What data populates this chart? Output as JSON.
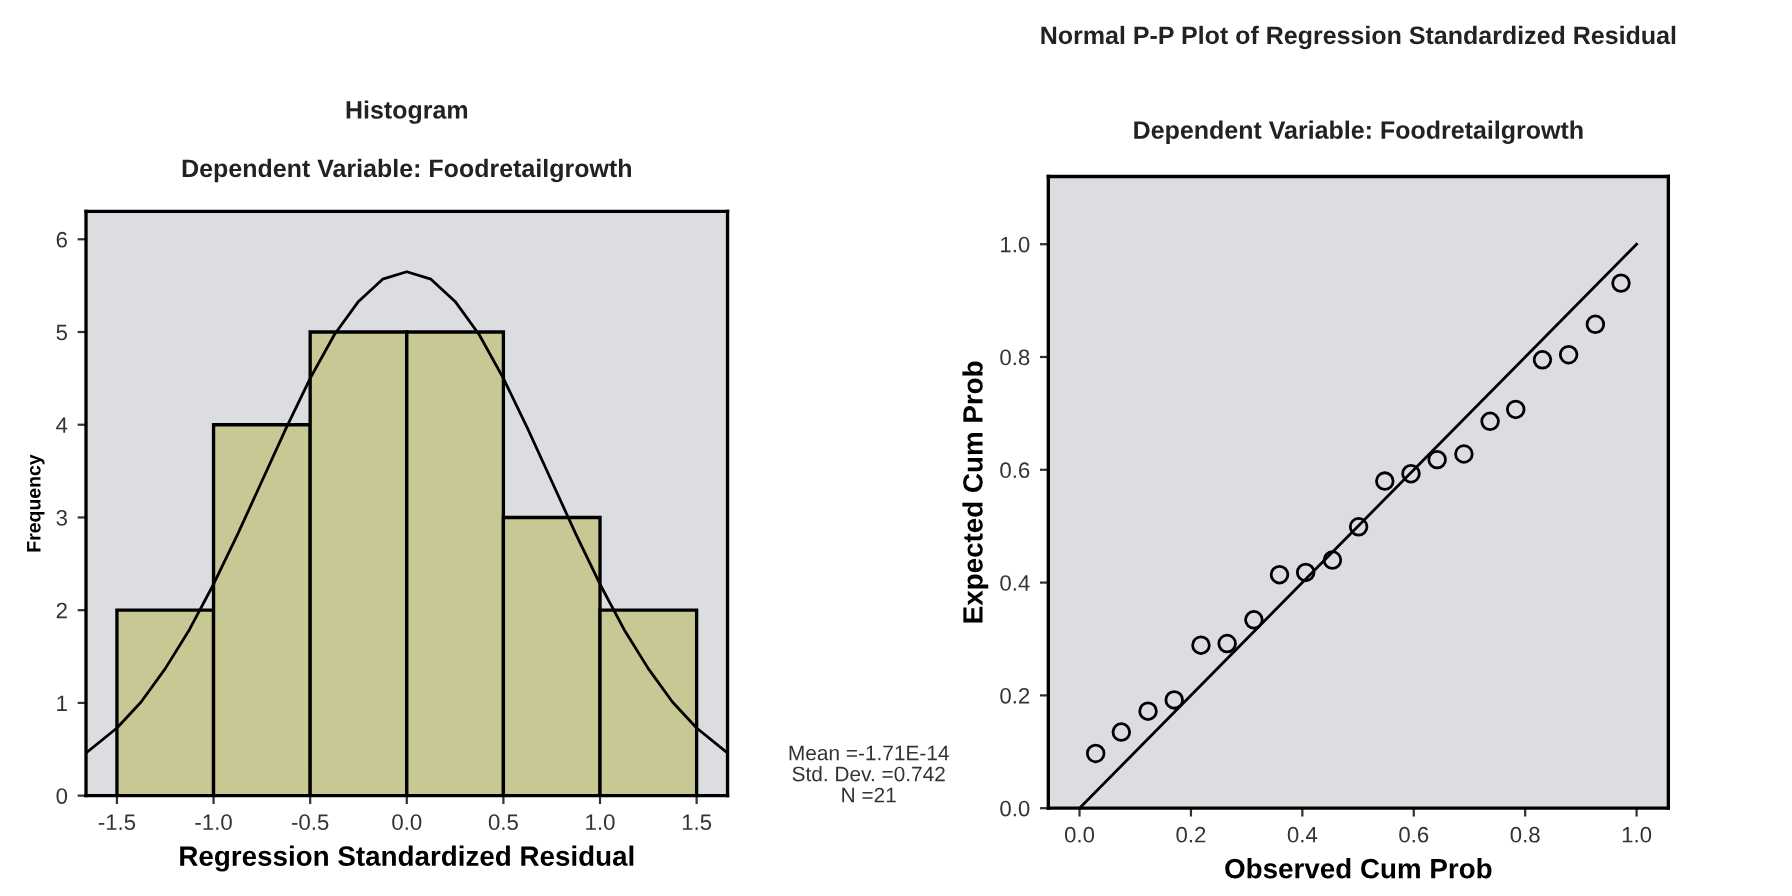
{
  "chart_data": [
    {
      "type": "histogram",
      "title": "Histogram",
      "subtitle": "Dependent Variable: Foodretailgrowth",
      "xlabel": "Regression Standardized Residual",
      "ylabel": "Frequency",
      "series": [
        {
          "bins": [
            -1.5,
            -1.0,
            -0.5,
            0.0,
            0.5,
            1.0,
            1.5
          ],
          "values": [
            2,
            4,
            5,
            5,
            3,
            2
          ],
          "color": "#c8c894"
        },
        {
          "type": "line",
          "color": "#000000",
          "x": [
            -1.66,
            -1.5,
            -1.375,
            -1.25,
            -1.125,
            -1.0,
            -0.875,
            -0.75,
            -0.625,
            -0.5,
            -0.375,
            -0.25,
            -0.125,
            0.0,
            0.125,
            0.25,
            0.375,
            0.5,
            0.625,
            0.75,
            0.875,
            1.0,
            1.125,
            1.25,
            1.375,
            1.5,
            1.66
          ],
          "values": [
            0.46,
            0.73,
            1.01,
            1.37,
            1.79,
            2.28,
            2.82,
            3.39,
            3.96,
            4.5,
            4.97,
            5.33,
            5.57,
            5.65,
            5.57,
            5.33,
            4.97,
            4.5,
            3.96,
            3.39,
            2.82,
            2.28,
            1.79,
            1.37,
            1.01,
            0.73,
            0.46
          ]
        }
      ],
      "xlim": [
        -1.66,
        1.66
      ],
      "ylim": [
        0,
        6.3
      ],
      "xticks": [
        {
          "value": -1.5,
          "label": "-1.5"
        },
        {
          "value": -1.0,
          "label": "-1.0"
        },
        {
          "value": -0.5,
          "label": "-0.5"
        },
        {
          "value": 0.0,
          "label": "0.0"
        },
        {
          "value": 0.5,
          "label": "0.5"
        },
        {
          "value": 1.0,
          "label": "1.0"
        },
        {
          "value": 1.5,
          "label": "1.5"
        }
      ],
      "yticks": [
        0,
        1,
        2,
        3,
        4,
        5,
        6
      ],
      "grid": false,
      "legend": false,
      "annotations": [
        "Mean =-1.71E-14",
        "Std. Dev. =0.742",
        "N =21"
      ]
    },
    {
      "type": "scatter",
      "title": "Normal P-P Plot of Regression Standardized Residual",
      "subtitle": "Dependent Variable: Foodretailgrowth",
      "xlabel": "Observed Cum Prob",
      "ylabel": "Expected Cum Prob",
      "series": [
        {
          "marker": "circle",
          "color": "#000000",
          "x": [
            0.029,
            0.075,
            0.123,
            0.17,
            0.218,
            0.265,
            0.313,
            0.359,
            0.406,
            0.454,
            0.501,
            0.548,
            0.595,
            0.642,
            0.69,
            0.737,
            0.783,
            0.831,
            0.878,
            0.926,
            0.972
          ],
          "values": [
            0.097,
            0.135,
            0.172,
            0.192,
            0.289,
            0.292,
            0.334,
            0.414,
            0.418,
            0.44,
            0.499,
            0.58,
            0.593,
            0.618,
            0.628,
            0.686,
            0.707,
            0.795,
            0.804,
            0.858,
            0.931
          ]
        },
        {
          "type": "line",
          "color": "#000000",
          "x": [
            0.0,
            1.0
          ],
          "values": [
            0.0,
            1.0
          ]
        }
      ],
      "xlim": [
        -0.056,
        1.057
      ],
      "ylim": [
        0,
        1.12
      ],
      "xticks": [
        {
          "value": 0.0,
          "label": "0.0"
        },
        {
          "value": 0.2,
          "label": "0.2"
        },
        {
          "value": 0.4,
          "label": "0.4"
        },
        {
          "value": 0.6,
          "label": "0.6"
        },
        {
          "value": 0.8,
          "label": "0.8"
        },
        {
          "value": 1.0,
          "label": "1.0"
        }
      ],
      "yticks": [
        {
          "value": 0.0,
          "label": "0.0"
        },
        {
          "value": 0.2,
          "label": "0.2"
        },
        {
          "value": 0.4,
          "label": "0.4"
        },
        {
          "value": 0.6,
          "label": "0.6"
        },
        {
          "value": 0.8,
          "label": "0.8"
        },
        {
          "value": 1.0,
          "label": "1.0"
        }
      ],
      "grid": false,
      "legend": false
    }
  ]
}
